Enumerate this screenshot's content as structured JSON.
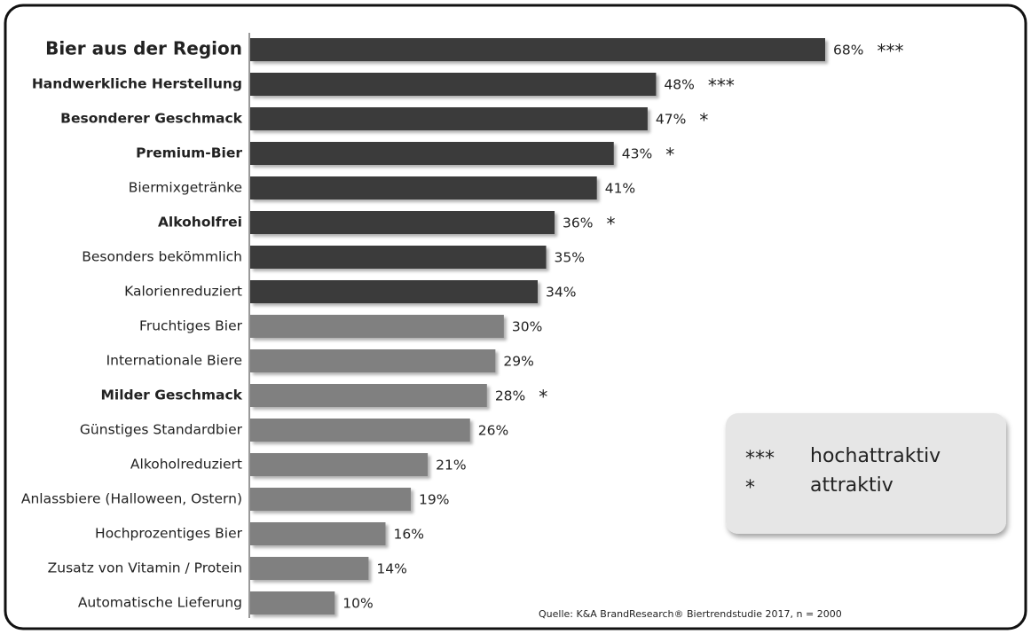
{
  "chart_data": {
    "type": "hbar",
    "categories": [
      "Bier aus der Region",
      "Handwerkliche Herstellung",
      "Besonderer Geschmack",
      "Premium-Bier",
      "Biermixgetränke",
      "Alkoholfrei",
      "Besonders bekömmlich",
      "Kalorienreduziert",
      "Fruchtiges Bier",
      "Internationale Biere",
      "Milder Geschmack",
      "Günstiges Standardbier",
      "Alkoholreduziert",
      "Anlassbiere (Halloween, Ostern)",
      "Hochprozentiges Bier",
      "Zusatz von Vitamin / Protein",
      "Automatische Lieferung"
    ],
    "values": [
      68,
      48,
      47,
      43,
      41,
      36,
      35,
      34,
      30,
      29,
      28,
      26,
      21,
      19,
      16,
      14,
      10
    ],
    "value_labels": [
      "68%",
      "48%",
      "47%",
      "43%",
      "41%",
      "36%",
      "35%",
      "34%",
      "30%",
      "29%",
      "28%",
      "26%",
      "21%",
      "19%",
      "16%",
      "14%",
      "10%"
    ],
    "annotations": [
      "***",
      "***",
      "*",
      "*",
      null,
      "*",
      null,
      null,
      null,
      null,
      "*",
      null,
      null,
      null,
      null,
      null,
      null
    ],
    "bold": [
      true,
      true,
      true,
      true,
      false,
      true,
      false,
      false,
      false,
      false,
      true,
      false,
      false,
      false,
      false,
      false,
      false
    ],
    "colors": [
      "#3b3b3b",
      "#3b3b3b",
      "#3b3b3b",
      "#3b3b3b",
      "#3b3b3b",
      "#3b3b3b",
      "#3b3b3b",
      "#3b3b3b",
      "#808080",
      "#808080",
      "#808080",
      "#808080",
      "#808080",
      "#808080",
      "#808080",
      "#808080",
      "#808080"
    ],
    "legend": [
      {
        "symbol": "***",
        "label": "hochattraktiv"
      },
      {
        "symbol": "*",
        "label": "attraktiv"
      }
    ],
    "source": "Quelle: K&A BrandResearch® Biertrendstudie 2017, n = 2000"
  }
}
